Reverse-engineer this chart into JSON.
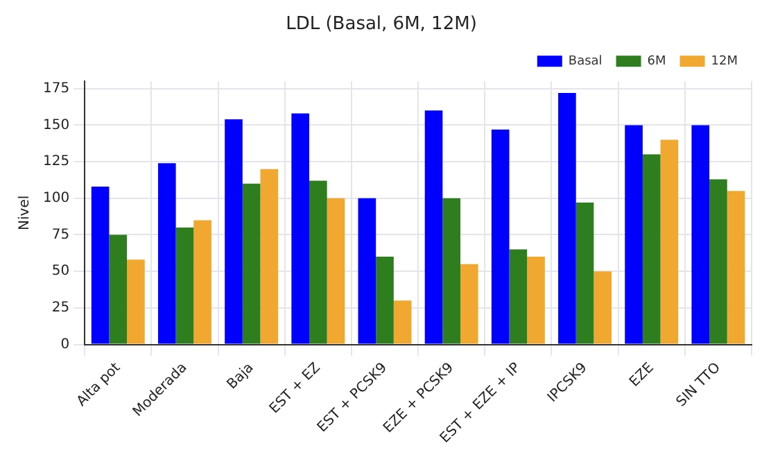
{
  "chart_data": {
    "type": "bar",
    "title": "LDL (Basal, 6M, 12M)",
    "ylabel": "Nivel",
    "categories": [
      "Alta pot",
      "Moderada",
      "Baja",
      "EST + EZ",
      "EST + PCSK9",
      "EZE + PCSK9",
      "EST + EZE + IP",
      "IPCSK9",
      "EZE",
      "SIN TTO"
    ],
    "series": [
      {
        "name": "Basal",
        "color": "#0000ff",
        "values": [
          108,
          124,
          154,
          158,
          100,
          160,
          147,
          172,
          150,
          150
        ]
      },
      {
        "name": "6M",
        "color": "#2e7d1e",
        "values": [
          75,
          80,
          110,
          112,
          60,
          100,
          65,
          97,
          130,
          113
        ]
      },
      {
        "name": "12M",
        "color": "#f0a830",
        "values": [
          58,
          85,
          120,
          100,
          30,
          55,
          60,
          50,
          140,
          105
        ]
      }
    ],
    "ylim": [
      0,
      180
    ],
    "yticks": [
      0,
      25,
      50,
      75,
      100,
      125,
      150,
      175
    ],
    "grid": true,
    "legend": "top right"
  }
}
